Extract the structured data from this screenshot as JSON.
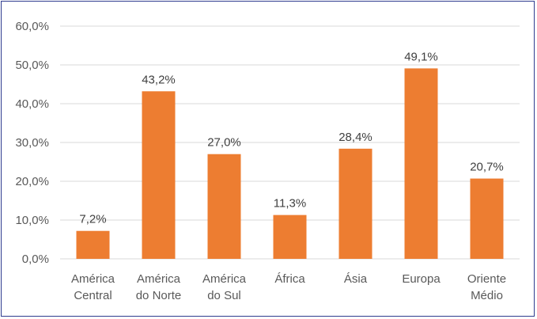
{
  "chart_data": {
    "type": "bar",
    "title": "",
    "xlabel": "",
    "ylabel": "",
    "categories": [
      [
        "América",
        "Central"
      ],
      [
        "América",
        "do Norte"
      ],
      [
        "América",
        "do Sul"
      ],
      [
        "África"
      ],
      [
        "Ásia"
      ],
      [
        "Europa"
      ],
      [
        "Oriente",
        "Médio"
      ]
    ],
    "values": [
      7.2,
      43.2,
      27.0,
      11.3,
      28.4,
      49.1,
      20.7
    ],
    "value_labels": [
      "7,2%",
      "43,2%",
      "27,0%",
      "11,3%",
      "28,4%",
      "49,1%",
      "20,7%"
    ],
    "ylim": [
      0,
      60
    ],
    "yticks": [
      0,
      10,
      20,
      30,
      40,
      50,
      60
    ],
    "ytick_labels": [
      "0,0%",
      "10,0%",
      "20,0%",
      "30,0%",
      "40,0%",
      "50,0%",
      "60,0%"
    ],
    "grid": true,
    "legend": "none",
    "colors": {
      "bar": "#ed7d31",
      "grid": "#d9d9d9",
      "border": "#2f3c8f"
    }
  }
}
